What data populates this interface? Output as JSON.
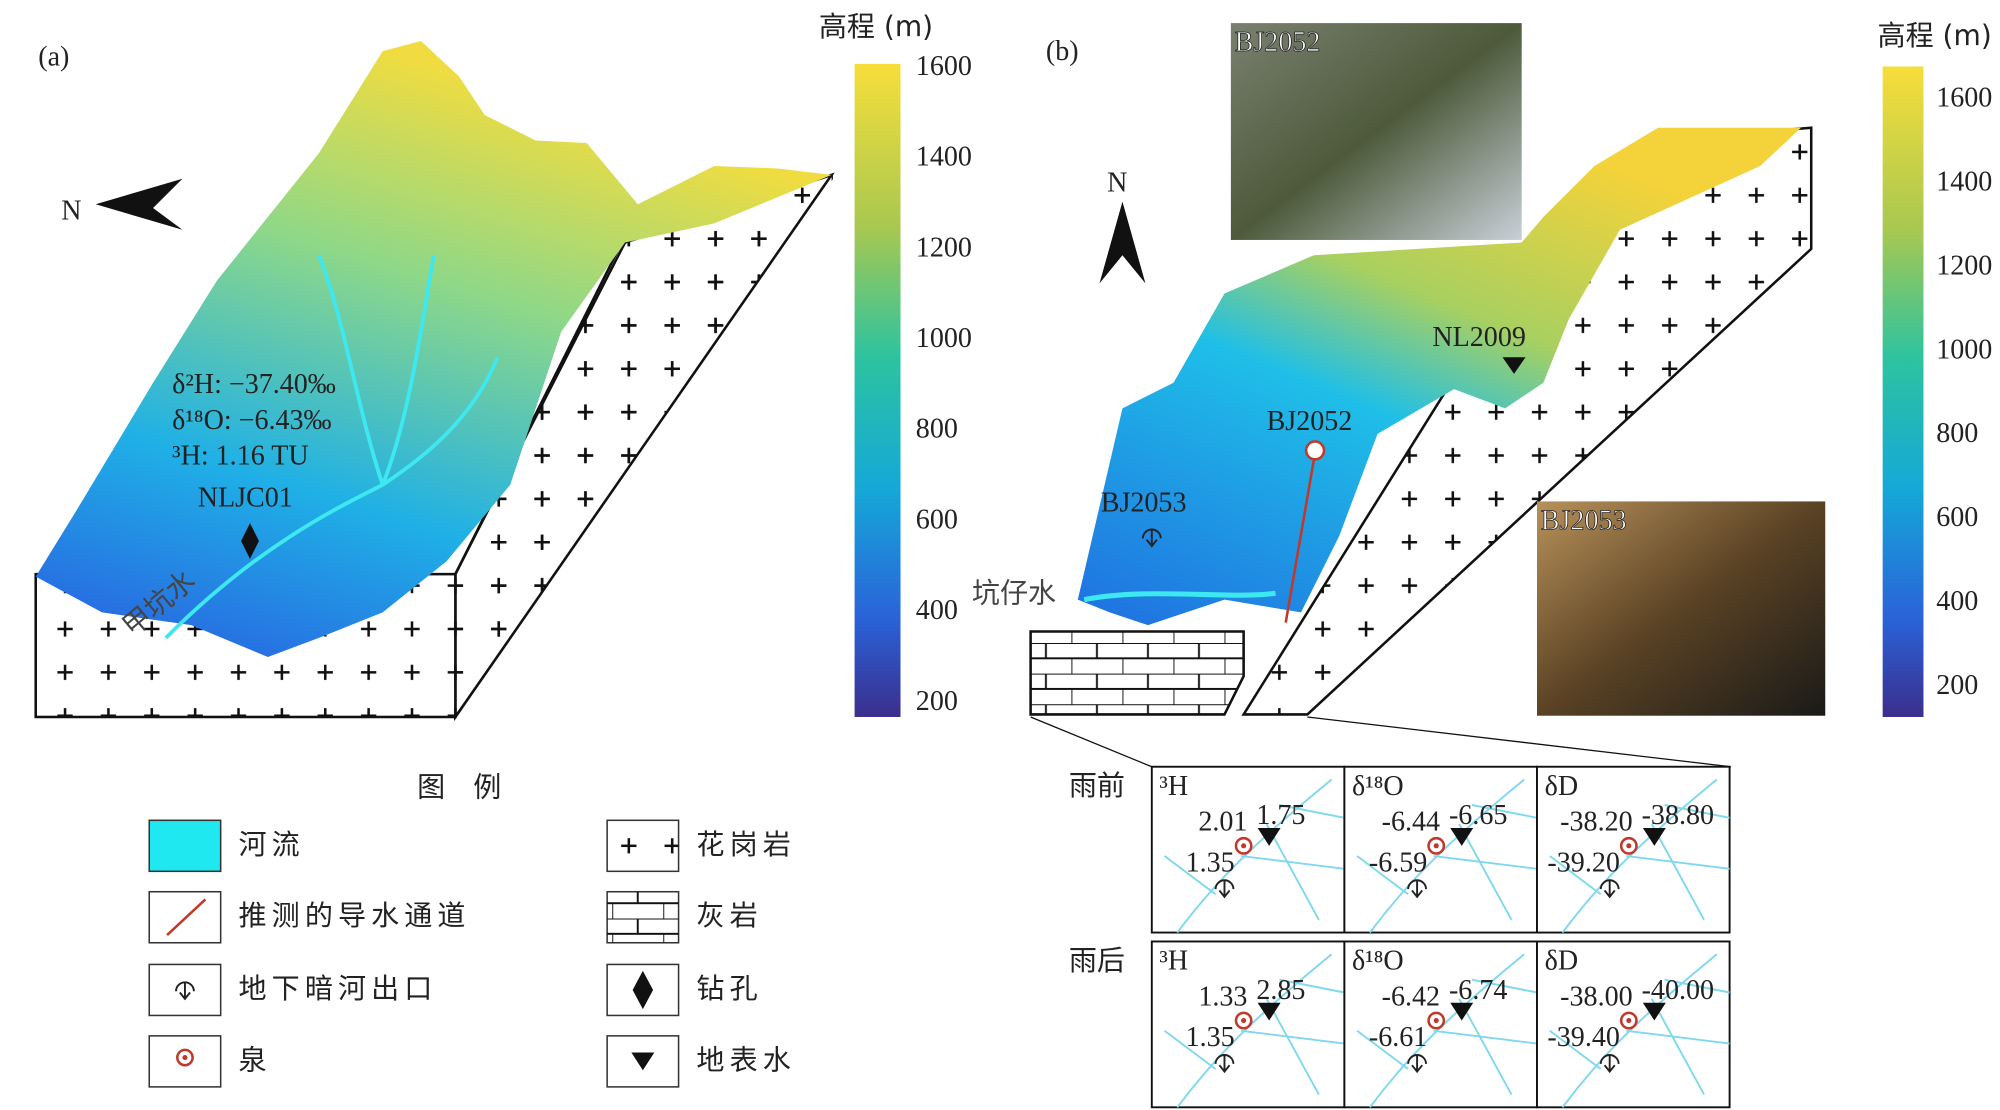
{
  "panel_a": {
    "label": "(a)",
    "north": "N",
    "colorbar": {
      "title": "高程 (m)",
      "lim": [
        170,
        1610
      ],
      "ticks": [
        200,
        400,
        600,
        800,
        1000,
        1200,
        1400,
        1600
      ]
    },
    "annotation": [
      "δ²H: −37.40‰",
      "δ¹⁸O: −6.43‰",
      "³H: 1.16 TU"
    ],
    "well": "NLJC01",
    "river": "甲坑水"
  },
  "panel_b": {
    "label": "(b)",
    "north": "N",
    "colorbar": {
      "title": "高程 (m)",
      "lim": [
        130,
        1680
      ],
      "ticks": [
        200,
        400,
        600,
        800,
        1000,
        1200,
        1400,
        1600
      ]
    },
    "photos": [
      "BJ2052",
      "BJ2053"
    ],
    "sites": {
      "outlet": "BJ2053",
      "spring": "BJ2052",
      "surface": "NL2009"
    },
    "river": "坑仔水",
    "inset": {
      "rows": [
        {
          "label": "雨前",
          "cells": [
            {
              "isotope": "³H",
              "values": [
                "2.01",
                "1.75",
                "1.35"
              ]
            },
            {
              "isotope": "δ¹⁸O",
              "values": [
                "-6.44",
                "-6.65",
                "-6.59"
              ]
            },
            {
              "isotope": "δD",
              "values": [
                "-38.20",
                "-38.80",
                "-39.20"
              ]
            }
          ]
        },
        {
          "label": "雨后",
          "cells": [
            {
              "isotope": "³H",
              "values": [
                "1.33",
                "2.85",
                "1.35"
              ]
            },
            {
              "isotope": "δ¹⁸O",
              "values": [
                "-6.42",
                "-6.74",
                "-6.61"
              ]
            },
            {
              "isotope": "δD",
              "values": [
                "-38.00",
                "-40.00",
                "-39.40"
              ]
            }
          ]
        }
      ]
    }
  },
  "legend": {
    "title": "图　例",
    "items": [
      "河流",
      "推测的导水通道",
      "地下暗河出口",
      "泉",
      "花岗岩",
      "灰岩",
      "钻孔",
      "地表水"
    ]
  }
}
